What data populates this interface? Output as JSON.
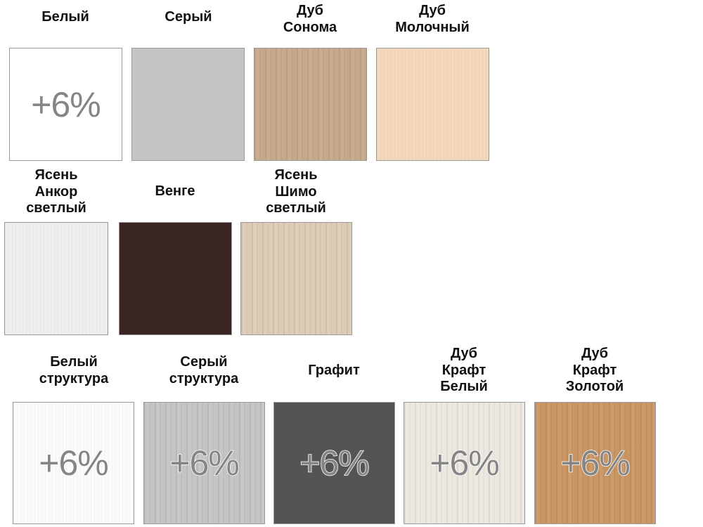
{
  "swatches": [
    {
      "name_lines": [
        "Белый"
      ],
      "badge": "+6%",
      "color": "#ffffff"
    },
    {
      "name_lines": [
        "Серый"
      ],
      "badge": null,
      "color": "#c3c4c6"
    },
    {
      "name_lines": [
        "Дуб",
        "Сонома"
      ],
      "badge": null,
      "color": "#c6a98a"
    },
    {
      "name_lines": [
        "Дуб",
        "Молочный"
      ],
      "badge": null,
      "color": "#f3d8bc"
    },
    {
      "name_lines": [
        "Ясень",
        "Анкор",
        "светлый"
      ],
      "badge": null,
      "color": "#eeeeef"
    },
    {
      "name_lines": [
        "Венге"
      ],
      "badge": null,
      "color": "#3a2624"
    },
    {
      "name_lines": [
        "Ясень",
        "Шимо",
        "светлый"
      ],
      "badge": null,
      "color": "#dccbb5"
    },
    {
      "name_lines": [
        "Белый",
        "структура"
      ],
      "badge": "+6%",
      "color": "#fbfbfb"
    },
    {
      "name_lines": [
        "Серый",
        "структура"
      ],
      "badge": "+6%",
      "color": "#c4c4c4"
    },
    {
      "name_lines": [
        "Графит"
      ],
      "badge": "+6%",
      "color": "#545454"
    },
    {
      "name_lines": [
        "Дуб",
        "Крафт",
        "Белый"
      ],
      "badge": "+6%",
      "color": "#ece8df"
    },
    {
      "name_lines": [
        "Дуб",
        "Крафт",
        "Золотой"
      ],
      "badge": "+6%",
      "color": "#c99663"
    }
  ]
}
